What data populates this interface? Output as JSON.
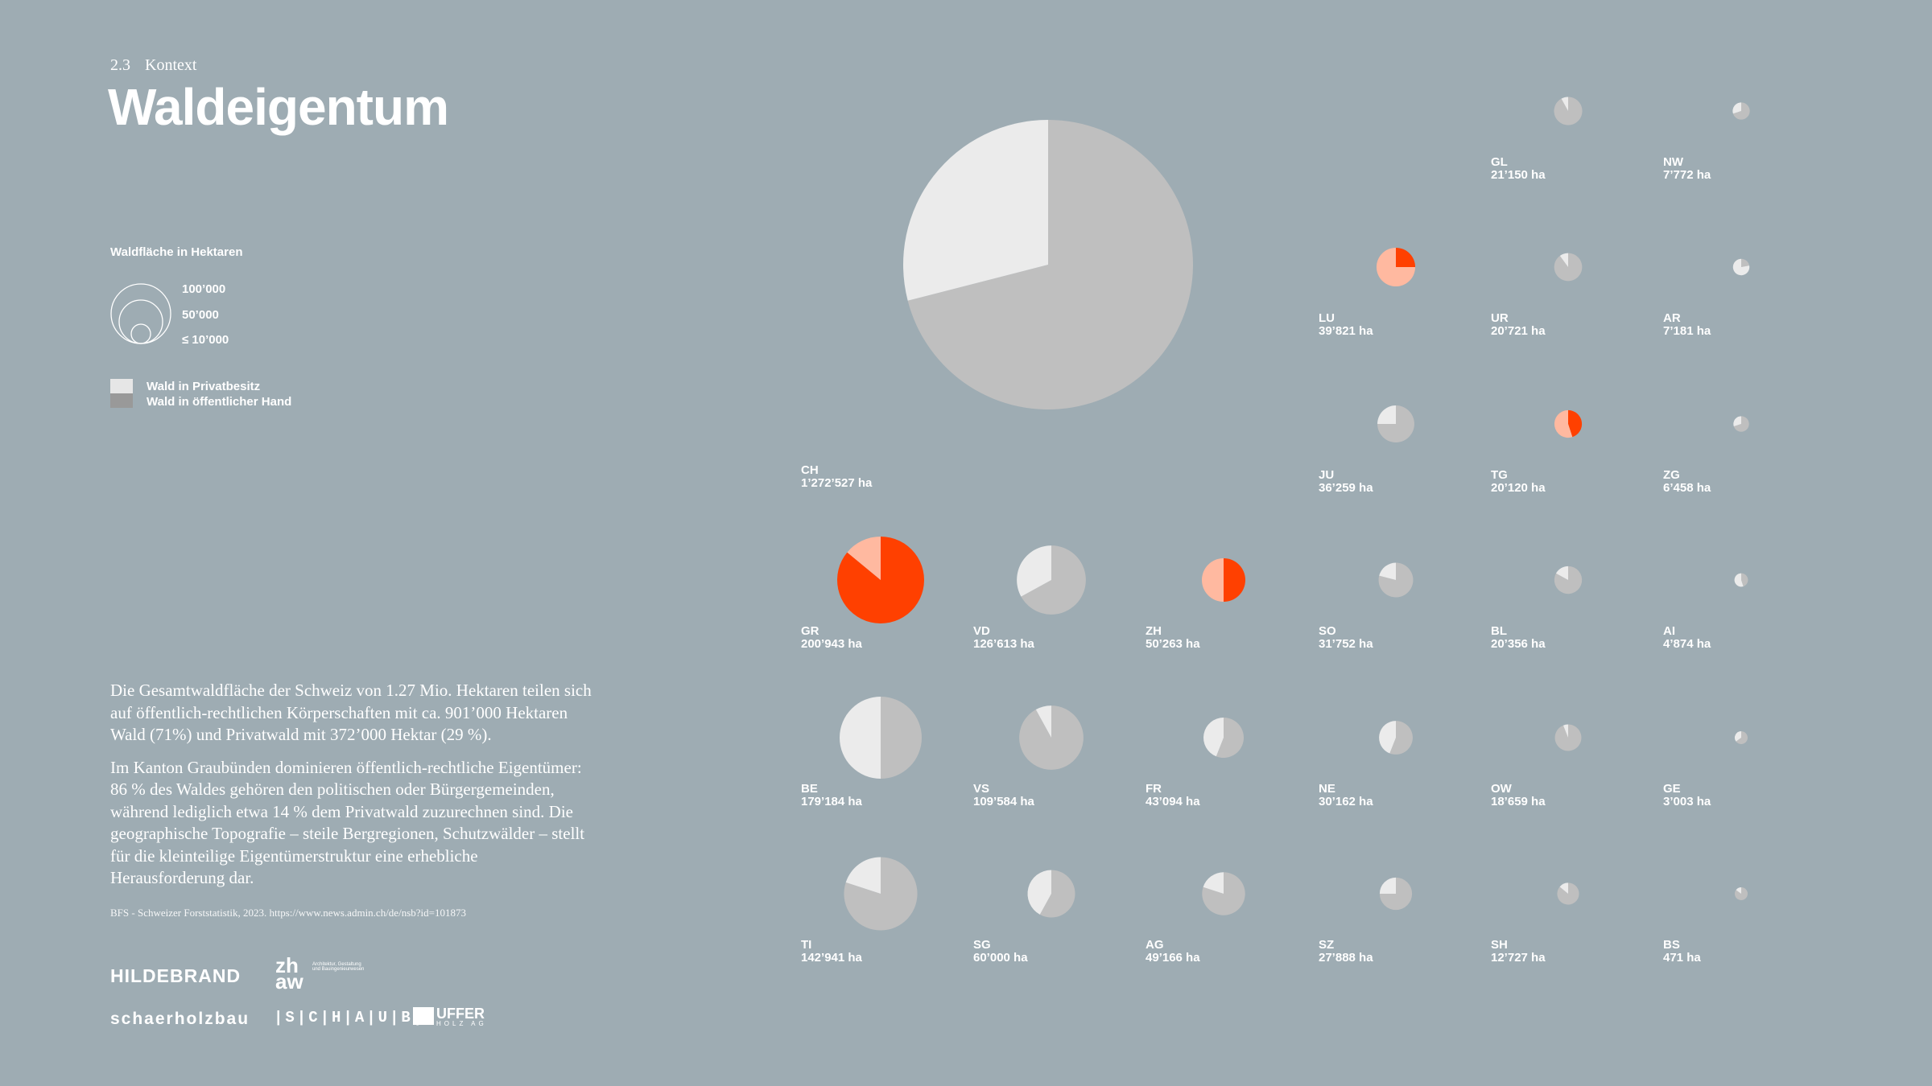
{
  "header": {
    "section_number": "2.3",
    "section_name": "Kontext",
    "title": "Waldeigentum"
  },
  "legend": {
    "title": "Waldfläche in Hektaren",
    "sizes": [
      "100’000",
      "50’000",
      "≤ 10’000"
    ],
    "private_label": "Wald in Privatbesitz",
    "public_label": "Wald in öffentlicher Hand"
  },
  "body": {
    "paragraphs": [
      "Die Gesamtwaldfläche der Schweiz von 1.27 Mio. Hektaren teilen sich auf öffentlich-rechtlichen Körperschaften mit ca. 901’000 Hektaren Wald (71%) und Privatwald mit 372’000 Hektar (29 %).",
      "Im Kanton Graubünden dominieren öffentlich-rechtliche Eigentümer: 86 % des Waldes gehören den politischen oder Bürgergemeinden, während lediglich etwa 14 % dem Privatwald zuzurechnen sind. Die geographische Topografie – steile Bergregionen, Schutzwälder – stellt für die kleinteilige Eigentümerstruktur eine erhebliche Herausforderung dar."
    ],
    "source": "BFS - Schweizer Forststatistik, 2023. https://www.news.admin.ch/de/nsb?id=101873"
  },
  "logos": {
    "hildebrand": "HILDEBRAND",
    "zhaw": "zh aw",
    "zhaw_sub": "Architektur, Gestaltung und Bauingenieurwesen",
    "schaerholzbau": "schaerholzbau",
    "schaub": "|S|C|H|A|U|B|",
    "uffer": "UFFER",
    "uffer_sub": "HOLZ AG"
  },
  "colors": {
    "background": "#9eacb3",
    "private": "#ebebeb",
    "public": "#bfbfbf",
    "highlight_private": "#ffb9a0",
    "highlight_public": "#ff4000"
  },
  "chart_data": {
    "type": "pie",
    "unit": "ha",
    "items": [
      {
        "code": "CH",
        "area_label": "1’272’527 ha",
        "area": 1272527,
        "private_share": 0.29,
        "highlight": false
      },
      {
        "code": "GL",
        "area_label": "21’150 ha",
        "area": 21150,
        "private_share": 0.08,
        "highlight": false
      },
      {
        "code": "NW",
        "area_label": "7’772 ha",
        "area": 7772,
        "private_share": 0.3,
        "highlight": false
      },
      {
        "code": "LU",
        "area_label": "39’821 ha",
        "area": 39821,
        "private_share": 0.75,
        "highlight": true
      },
      {
        "code": "UR",
        "area_label": "20’721 ha",
        "area": 20721,
        "private_share": 0.1,
        "highlight": false
      },
      {
        "code": "AR",
        "area_label": "7’181 ha",
        "area": 7181,
        "private_share": 0.78,
        "highlight": false
      },
      {
        "code": "JU",
        "area_label": "36’259 ha",
        "area": 36259,
        "private_share": 0.25,
        "highlight": false
      },
      {
        "code": "TG",
        "area_label": "20’120 ha",
        "area": 20120,
        "private_share": 0.55,
        "highlight": true
      },
      {
        "code": "ZG",
        "area_label": "6’458 ha",
        "area": 6458,
        "private_share": 0.3,
        "highlight": false
      },
      {
        "code": "GR",
        "area_label": "200’943 ha",
        "area": 200943,
        "private_share": 0.14,
        "highlight": true
      },
      {
        "code": "VD",
        "area_label": "126’613 ha",
        "area": 126613,
        "private_share": 0.33,
        "highlight": false
      },
      {
        "code": "ZH",
        "area_label": "50’263 ha",
        "area": 50263,
        "private_share": 0.5,
        "highlight": true
      },
      {
        "code": "SO",
        "area_label": "31’752 ha",
        "area": 31752,
        "private_share": 0.21,
        "highlight": false
      },
      {
        "code": "BL",
        "area_label": "20’356 ha",
        "area": 20356,
        "private_share": 0.17,
        "highlight": false
      },
      {
        "code": "AI",
        "area_label": "4’874 ha",
        "area": 4874,
        "private_share": 0.55,
        "highlight": false
      },
      {
        "code": "BE",
        "area_label": "179’184 ha",
        "area": 179184,
        "private_share": 0.5,
        "highlight": false
      },
      {
        "code": "VS",
        "area_label": "109’584 ha",
        "area": 109584,
        "private_share": 0.08,
        "highlight": false
      },
      {
        "code": "FR",
        "area_label": "43’094 ha",
        "area": 43094,
        "private_share": 0.44,
        "highlight": false
      },
      {
        "code": "NE",
        "area_label": "30’162 ha",
        "area": 30162,
        "private_share": 0.44,
        "highlight": false
      },
      {
        "code": "OW",
        "area_label": "18’659 ha",
        "area": 18659,
        "private_share": 0.06,
        "highlight": false
      },
      {
        "code": "GE",
        "area_label": "3’003 ha",
        "area": 3003,
        "private_share": 0.35,
        "highlight": false
      },
      {
        "code": "TI",
        "area_label": "142’941 ha",
        "area": 142941,
        "private_share": 0.2,
        "highlight": false
      },
      {
        "code": "SG",
        "area_label": "60’000 ha",
        "area": 60000,
        "private_share": 0.42,
        "highlight": false
      },
      {
        "code": "AG",
        "area_label": "49’166 ha",
        "area": 49166,
        "private_share": 0.2,
        "highlight": false
      },
      {
        "code": "SZ",
        "area_label": "27’888 ha",
        "area": 27888,
        "private_share": 0.25,
        "highlight": false
      },
      {
        "code": "SH",
        "area_label": "12’727 ha",
        "area": 12727,
        "private_share": 0.14,
        "highlight": false
      },
      {
        "code": "BS",
        "area_label": "471 ha",
        "area": 471,
        "private_share": 0.15,
        "highlight": false
      }
    ]
  }
}
